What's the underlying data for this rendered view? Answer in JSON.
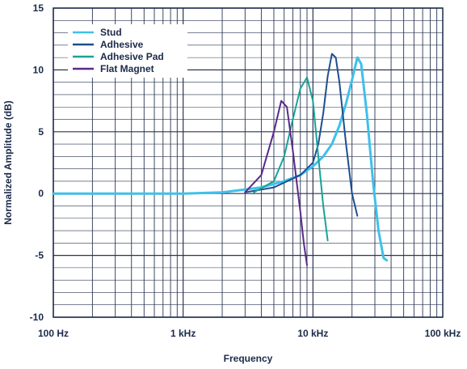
{
  "chart_data": {
    "type": "line",
    "xlabel": "Frequency",
    "ylabel": "Normalized Amplitude (dB)",
    "x_scale": "log",
    "xlim": [
      100,
      100000
    ],
    "ylim": [
      -10,
      15
    ],
    "x_ticks": [
      {
        "value": 100,
        "label": "100 Hz"
      },
      {
        "value": 1000,
        "label": "1 kHz"
      },
      {
        "value": 10000,
        "label": "10 kHz"
      },
      {
        "value": 100000,
        "label": "100 kHz"
      }
    ],
    "y_ticks": [
      {
        "value": 15,
        "label": "15"
      },
      {
        "value": 10,
        "label": "10"
      },
      {
        "value": 5,
        "label": "5"
      },
      {
        "value": 0,
        "label": "0"
      },
      {
        "value": -5,
        "label": "-5"
      },
      {
        "value": -10,
        "label": "-10"
      }
    ],
    "grid": true,
    "legend_position": "top-left",
    "series": [
      {
        "name": "Stud",
        "color": "#3fc0ea",
        "width": 3,
        "points": [
          [
            100,
            0
          ],
          [
            1000,
            0
          ],
          [
            2000,
            0.1
          ],
          [
            4000,
            0.5
          ],
          [
            6000,
            1.0
          ],
          [
            8000,
            1.5
          ],
          [
            10000,
            2.2
          ],
          [
            12000,
            3.0
          ],
          [
            14000,
            4.0
          ],
          [
            16000,
            5.5
          ],
          [
            18000,
            7.3
          ],
          [
            20000,
            9.2
          ],
          [
            22000,
            11.0
          ],
          [
            23500,
            10.5
          ],
          [
            26000,
            6.5
          ],
          [
            29000,
            1.0
          ],
          [
            32000,
            -3.0
          ],
          [
            35000,
            -5.2
          ],
          [
            37000,
            -5.4
          ]
        ]
      },
      {
        "name": "Adhesive",
        "color": "#1c4f8f",
        "width": 2,
        "points": [
          [
            3000,
            0.1
          ],
          [
            5000,
            0.5
          ],
          [
            8000,
            1.5
          ],
          [
            10000,
            2.5
          ],
          [
            11000,
            4.0
          ],
          [
            12000,
            6.5
          ],
          [
            13000,
            9.5
          ],
          [
            14000,
            11.3
          ],
          [
            15000,
            11.0
          ],
          [
            16000,
            9.0
          ],
          [
            18000,
            4.0
          ],
          [
            20000,
            0.0
          ],
          [
            22000,
            -1.8
          ]
        ]
      },
      {
        "name": "Adhesive Pad",
        "color": "#17a398",
        "width": 2,
        "points": [
          [
            3500,
            0.1
          ],
          [
            5000,
            1.0
          ],
          [
            6000,
            3.0
          ],
          [
            7000,
            6.0
          ],
          [
            8000,
            8.5
          ],
          [
            9000,
            9.4
          ],
          [
            10000,
            7.5
          ],
          [
            11000,
            3.0
          ],
          [
            12000,
            -1.0
          ],
          [
            13000,
            -3.8
          ]
        ]
      },
      {
        "name": "Flat Magnet",
        "color": "#5a2a8a",
        "width": 2,
        "points": [
          [
            3000,
            0.1
          ],
          [
            4000,
            1.5
          ],
          [
            5000,
            5.0
          ],
          [
            5700,
            7.5
          ],
          [
            6300,
            7.0
          ],
          [
            7000,
            3.5
          ],
          [
            8000,
            -1.5
          ],
          [
            8500,
            -4.0
          ],
          [
            9000,
            -5.8
          ]
        ]
      }
    ]
  }
}
